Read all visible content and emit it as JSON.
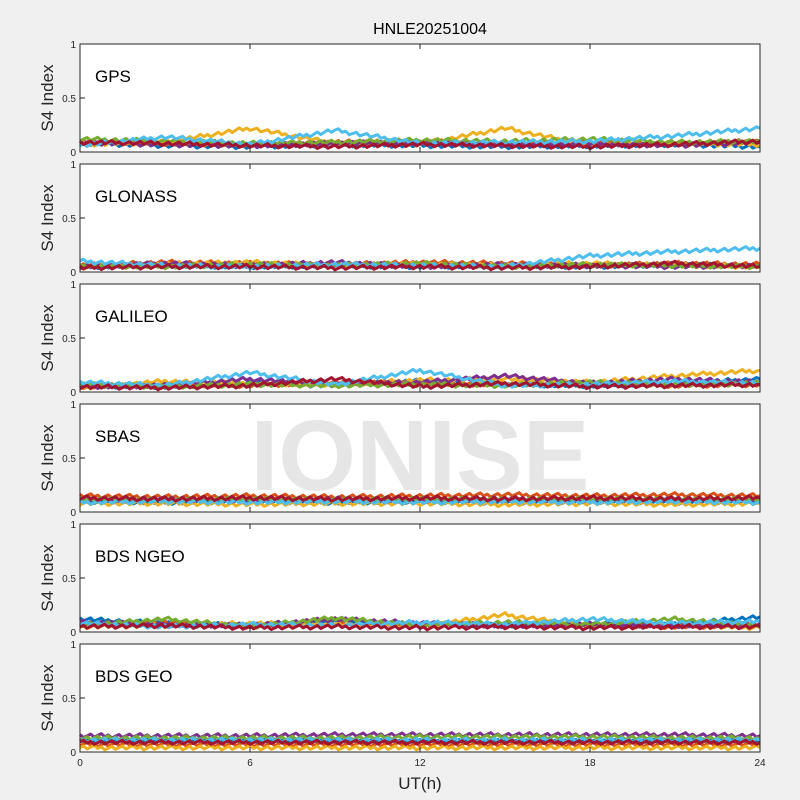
{
  "chart_data": {
    "type": "line",
    "title": "HNLE20251004",
    "xlabel": "UT(h)",
    "ylabel": "S4 Index",
    "xlim": [
      0,
      24
    ],
    "ylim": [
      0,
      1
    ],
    "xticks": [
      "0",
      "6",
      "12",
      "18",
      "24"
    ],
    "yticks": [
      "0",
      "0.5",
      "1"
    ],
    "watermark": "IONISE",
    "colors": [
      "#0072BD",
      "#D95319",
      "#EDB120",
      "#7E2F8E",
      "#77AC30",
      "#4DBEEE",
      "#A2142F"
    ],
    "x": [
      0,
      3,
      6,
      9,
      12,
      15,
      18,
      21,
      24
    ],
    "panels": [
      {
        "label": "GPS",
        "series": [
          [
            0.08,
            0.06,
            0.05,
            0.07,
            0.06,
            0.05,
            0.06,
            0.07,
            0.05
          ],
          [
            0.1,
            0.08,
            0.07,
            0.09,
            0.1,
            0.08,
            0.09,
            0.08,
            0.1
          ],
          [
            0.07,
            0.09,
            0.22,
            0.08,
            0.07,
            0.22,
            0.06,
            0.08,
            0.07
          ],
          [
            0.09,
            0.07,
            0.06,
            0.08,
            0.09,
            0.07,
            0.08,
            0.06,
            0.09
          ],
          [
            0.12,
            0.1,
            0.08,
            0.09,
            0.11,
            0.1,
            0.12,
            0.09,
            0.1
          ],
          [
            0.06,
            0.14,
            0.07,
            0.2,
            0.08,
            0.09,
            0.1,
            0.15,
            0.22
          ],
          [
            0.09,
            0.08,
            0.06,
            0.05,
            0.07,
            0.06,
            0.05,
            0.07,
            0.1
          ]
        ]
      },
      {
        "label": "GLONASS",
        "series": [
          [
            0.05,
            0.06,
            0.05,
            0.06,
            0.05,
            0.06,
            0.05,
            0.07,
            0.05
          ],
          [
            0.06,
            0.09,
            0.08,
            0.07,
            0.09,
            0.08,
            0.06,
            0.08,
            0.07
          ],
          [
            0.04,
            0.07,
            0.09,
            0.06,
            0.07,
            0.06,
            0.08,
            0.06,
            0.05
          ],
          [
            0.05,
            0.08,
            0.06,
            0.09,
            0.05,
            0.07,
            0.06,
            0.05,
            0.06
          ],
          [
            0.06,
            0.05,
            0.07,
            0.06,
            0.08,
            0.05,
            0.07,
            0.06,
            0.05
          ],
          [
            0.1,
            0.06,
            0.05,
            0.07,
            0.06,
            0.05,
            0.15,
            0.19,
            0.22
          ],
          [
            0.04,
            0.05,
            0.05,
            0.04,
            0.05,
            0.04,
            0.05,
            0.08,
            0.05
          ]
        ]
      },
      {
        "label": "GALILEO",
        "series": [
          [
            0.06,
            0.05,
            0.08,
            0.06,
            0.1,
            0.07,
            0.06,
            0.08,
            0.12
          ],
          [
            0.05,
            0.07,
            0.06,
            0.09,
            0.08,
            0.07,
            0.08,
            0.06,
            0.07
          ],
          [
            0.04,
            0.1,
            0.08,
            0.07,
            0.11,
            0.12,
            0.09,
            0.15,
            0.2
          ],
          [
            0.05,
            0.06,
            0.12,
            0.07,
            0.09,
            0.15,
            0.08,
            0.12,
            0.09
          ],
          [
            0.07,
            0.05,
            0.07,
            0.06,
            0.07,
            0.06,
            0.09,
            0.07,
            0.08
          ],
          [
            0.09,
            0.06,
            0.18,
            0.07,
            0.2,
            0.06,
            0.07,
            0.1,
            0.08
          ],
          [
            0.05,
            0.04,
            0.06,
            0.12,
            0.05,
            0.08,
            0.05,
            0.06,
            0.07
          ]
        ]
      },
      {
        "label": "SBAS",
        "series": [
          [
            0.1,
            0.09,
            0.1,
            0.09,
            0.1,
            0.09,
            0.1,
            0.09,
            0.1
          ],
          [
            0.15,
            0.14,
            0.15,
            0.14,
            0.15,
            0.16,
            0.15,
            0.16,
            0.15
          ],
          [
            0.08,
            0.08,
            0.07,
            0.08,
            0.08,
            0.07,
            0.08,
            0.07,
            0.08
          ],
          [
            0.11,
            0.12,
            0.11,
            0.12,
            0.11,
            0.12,
            0.11,
            0.12,
            0.11
          ],
          [
            0.12,
            0.11,
            0.12,
            0.11,
            0.12,
            0.11,
            0.12,
            0.11,
            0.12
          ],
          [
            0.09,
            0.1,
            0.09,
            0.1,
            0.09,
            0.1,
            0.09,
            0.1,
            0.09
          ],
          [
            0.13,
            0.12,
            0.13,
            0.12,
            0.13,
            0.12,
            0.13,
            0.12,
            0.13
          ]
        ]
      },
      {
        "label": "BDS NGEO",
        "series": [
          [
            0.12,
            0.08,
            0.06,
            0.09,
            0.07,
            0.06,
            0.08,
            0.07,
            0.14
          ],
          [
            0.07,
            0.09,
            0.05,
            0.07,
            0.06,
            0.08,
            0.06,
            0.05,
            0.06
          ],
          [
            0.05,
            0.06,
            0.08,
            0.07,
            0.05,
            0.16,
            0.05,
            0.06,
            0.04
          ],
          [
            0.09,
            0.07,
            0.06,
            0.12,
            0.08,
            0.06,
            0.07,
            0.06,
            0.08
          ],
          [
            0.06,
            0.12,
            0.05,
            0.13,
            0.06,
            0.09,
            0.07,
            0.12,
            0.06
          ],
          [
            0.08,
            0.05,
            0.07,
            0.06,
            0.09,
            0.07,
            0.12,
            0.08,
            0.1
          ],
          [
            0.05,
            0.06,
            0.04,
            0.05,
            0.04,
            0.05,
            0.04,
            0.05,
            0.05
          ]
        ]
      },
      {
        "label": "BDS GEO",
        "series": [
          [
            0.1,
            0.1,
            0.1,
            0.1,
            0.1,
            0.1,
            0.1,
            0.1,
            0.1
          ],
          [
            0.07,
            0.07,
            0.07,
            0.07,
            0.07,
            0.07,
            0.07,
            0.07,
            0.07
          ],
          [
            0.04,
            0.04,
            0.04,
            0.04,
            0.04,
            0.04,
            0.04,
            0.04,
            0.04
          ],
          [
            0.15,
            0.15,
            0.15,
            0.16,
            0.16,
            0.16,
            0.16,
            0.16,
            0.15
          ],
          [
            0.13,
            0.13,
            0.13,
            0.13,
            0.14,
            0.14,
            0.14,
            0.13,
            0.13
          ],
          [
            0.11,
            0.11,
            0.11,
            0.11,
            0.11,
            0.11,
            0.11,
            0.11,
            0.11
          ],
          [
            0.09,
            0.09,
            0.09,
            0.09,
            0.09,
            0.09,
            0.09,
            0.09,
            0.09
          ]
        ]
      }
    ]
  }
}
